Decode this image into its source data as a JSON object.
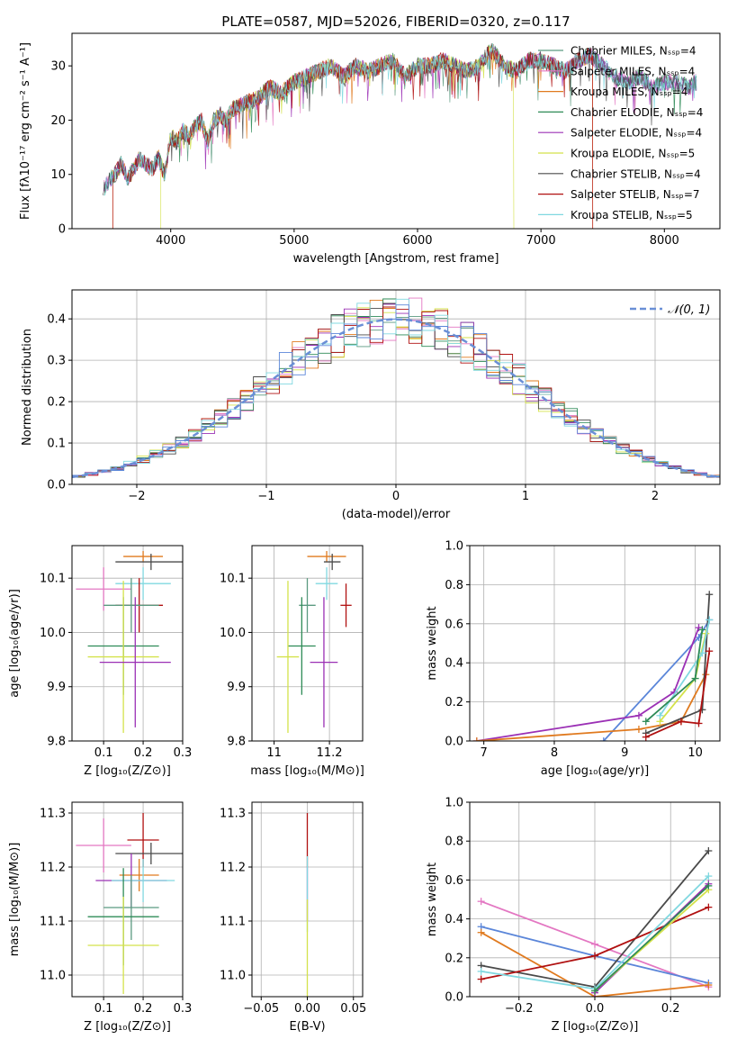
{
  "colors": {
    "Chabrier MILES": "#5b9a80",
    "Salpeter MILES": "#e377c2",
    "Kroupa MILES": "#e07a1f",
    "Chabrier ELODIE": "#2e8b57",
    "Salpeter ELODIE": "#9b30b5",
    "Kroupa ELODIE": "#d4e24b",
    "Chabrier STELIB": "#4a4a4a",
    "Salpeter STELIB": "#b01010",
    "Kroupa STELIB": "#80d8e0",
    "normal": "#6a8fd6",
    "extra_blue": "#5b86d9",
    "extra_teal": "#6fc9c6"
  },
  "chart_data": [
    {
      "id": "spectrum",
      "type": "line",
      "title": "PLATE=0587, MJD=52026, FIBERID=0320, z=0.117",
      "xlabel": "wavelength [Angstrom, rest frame]",
      "ylabel": "Flux [fλ10⁻¹⁷ erg cm⁻² s⁻¹ A⁻¹]",
      "xlim": [
        3200,
        8450
      ],
      "ylim": [
        0,
        36
      ],
      "xticks": [
        4000,
        5000,
        6000,
        7000,
        8000
      ],
      "yticks": [
        0,
        10,
        20,
        30
      ],
      "grid": false,
      "legend_position": "top-right",
      "legend": [
        {
          "label": "Chabrier MILES, Nₛₛₚ=4",
          "color_key": "Chabrier MILES"
        },
        {
          "label": "Salpeter MILES, Nₛₛₚ=4",
          "color_key": "Salpeter MILES"
        },
        {
          "label": "Kroupa MILES, Nₛₛₚ=4",
          "color_key": "Kroupa MILES"
        },
        {
          "label": "Chabrier ELODIE, Nₛₛₚ=4",
          "color_key": "Chabrier ELODIE"
        },
        {
          "label": "Salpeter ELODIE, Nₛₛₚ=4",
          "color_key": "Salpeter ELODIE"
        },
        {
          "label": "Kroupa ELODIE, Nₛₛₚ=5",
          "color_key": "Kroupa ELODIE"
        },
        {
          "label": "Chabrier STELIB, Nₛₛₚ=4",
          "color_key": "Chabrier STELIB"
        },
        {
          "label": "Salpeter STELIB, Nₛₛₚ=7",
          "color_key": "Salpeter STELIB"
        },
        {
          "label": "Kroupa STELIB, Nₛₛₚ=5",
          "color_key": "Kroupa STELIB"
        }
      ],
      "data_x": [
        3450,
        3500,
        3550,
        3600,
        3650,
        3700,
        3750,
        3800,
        3850,
        3900,
        3950,
        4000,
        4050,
        4100,
        4150,
        4200,
        4250,
        4300,
        4350,
        4400,
        4450,
        4500,
        4600,
        4700,
        4800,
        4900,
        5000,
        5100,
        5200,
        5300,
        5400,
        5500,
        5600,
        5700,
        5800,
        5900,
        6000,
        6100,
        6200,
        6300,
        6400,
        6500,
        6600,
        6700,
        6800,
        6900,
        7000,
        7100,
        7200,
        7300,
        7400,
        7500,
        7600,
        7700,
        7800,
        7900,
        8000,
        8100,
        8200,
        8250
      ],
      "data_y": [
        7,
        9,
        10,
        12,
        9,
        11,
        13,
        12,
        11,
        13,
        10,
        17,
        16,
        18,
        17,
        19,
        20,
        16,
        20,
        21,
        20,
        22,
        23,
        24,
        26,
        25,
        27,
        28,
        29,
        30,
        28,
        30,
        29,
        30,
        31,
        28,
        30,
        30,
        31,
        30,
        29,
        30,
        33,
        30,
        29,
        31,
        31,
        30,
        29,
        31,
        32,
        30,
        28,
        27,
        28,
        26,
        27,
        27,
        26,
        27
      ]
    },
    {
      "id": "residuals",
      "type": "histogram",
      "xlabel": "(data-model)/error",
      "ylabel": "Normed distribution",
      "xlim": [
        -2.5,
        2.5
      ],
      "ylim": [
        0,
        0.47
      ],
      "xticks": [
        -2,
        -1,
        0,
        1,
        2
      ],
      "yticks": [
        0.0,
        0.1,
        0.2,
        0.3,
        0.4
      ],
      "grid": true,
      "legend_position": "top-right",
      "legend": [
        {
          "label": "𝒩(0, 1)",
          "style": "dashed"
        }
      ],
      "bin_width": 0.1,
      "bins_start": -2.5
    },
    {
      "id": "age-vs-Z",
      "type": "scatter",
      "xlabel": "Z [log₁₀(Z/Z⊙)]",
      "ylabel": "age  [log₁₀(age/yr)]",
      "xlim": [
        0.02,
        0.3
      ],
      "ylim": [
        9.8,
        10.16
      ],
      "xticks": [
        0.1,
        0.2,
        0.3
      ],
      "yticks": [
        9.8,
        9.9,
        10.0,
        10.1
      ],
      "grid": true,
      "points": [
        {
          "model": "Salpeter MILES",
          "x": 0.1,
          "y": 10.08,
          "xerr": 0.07,
          "yerr": 0.04
        },
        {
          "model": "Kroupa MILES",
          "x": 0.2,
          "y": 10.14,
          "xerr": 0.05,
          "yerr": 0.01
        },
        {
          "model": "Chabrier STELIB",
          "x": 0.22,
          "y": 10.13,
          "xerr": 0.09,
          "yerr": 0.015
        },
        {
          "model": "Kroupa STELIB",
          "x": 0.2,
          "y": 10.09,
          "xerr": 0.07,
          "yerr": 0.03
        },
        {
          "model": "Salpeter STELIB",
          "x": 0.19,
          "y": 10.05,
          "xerr": 0.06,
          "yerr": 0.05
        },
        {
          "model": "Chabrier MILES",
          "x": 0.17,
          "y": 10.05,
          "xerr": 0.07,
          "yerr": 0.05
        },
        {
          "model": "Chabrier ELODIE",
          "x": 0.15,
          "y": 9.975,
          "xerr": 0.09,
          "yerr": 0.09
        },
        {
          "model": "Kroupa ELODIE",
          "x": 0.15,
          "y": 9.955,
          "xerr": 0.09,
          "yerr": 0.14
        },
        {
          "model": "Salpeter ELODIE",
          "x": 0.18,
          "y": 9.945,
          "xerr": 0.09,
          "yerr": 0.12
        }
      ]
    },
    {
      "id": "age-vs-mass",
      "type": "scatter",
      "xlabel": "mass [log₁₀(M/M⊙)]",
      "ylabel": "",
      "xlim": [
        10.92,
        11.32
      ],
      "ylim": [
        9.8,
        10.16
      ],
      "xticks": [
        11.0,
        11.2
      ],
      "yticks": [
        9.8,
        9.9,
        10.0,
        10.1
      ],
      "grid": true,
      "points": [
        {
          "model": "Kroupa MILES",
          "x": 11.19,
          "y": 10.14,
          "xerr": 0.07,
          "yerr": 0.01
        },
        {
          "model": "Chabrier STELIB",
          "x": 11.21,
          "y": 10.13,
          "xerr": 0.03,
          "yerr": 0.015
        },
        {
          "model": "Kroupa STELIB",
          "x": 11.19,
          "y": 10.09,
          "xerr": 0.04,
          "yerr": 0.03
        },
        {
          "model": "Salpeter STELIB",
          "x": 11.26,
          "y": 10.05,
          "xerr": 0.02,
          "yerr": 0.04
        },
        {
          "model": "Chabrier MILES",
          "x": 11.12,
          "y": 10.05,
          "xerr": 0.03,
          "yerr": 0.05
        },
        {
          "model": "Chabrier ELODIE",
          "x": 11.1,
          "y": 9.975,
          "xerr": 0.05,
          "yerr": 0.09
        },
        {
          "model": "Kroupa ELODIE",
          "x": 11.05,
          "y": 9.955,
          "xerr": 0.04,
          "yerr": 0.14
        },
        {
          "model": "Salpeter ELODIE",
          "x": 11.18,
          "y": 9.945,
          "xerr": 0.05,
          "yerr": 0.12
        }
      ]
    },
    {
      "id": "weight-vs-age",
      "type": "line",
      "xlabel": "age  [log₁₀(age/yr)]",
      "ylabel": "mass weight",
      "xlim": [
        6.8,
        10.35
      ],
      "ylim": [
        0,
        1.0
      ],
      "xticks": [
        7,
        8,
        9,
        10
      ],
      "yticks": [
        0.0,
        0.2,
        0.4,
        0.6,
        0.8,
        1.0
      ],
      "grid": true,
      "series": [
        {
          "model": "extra_blue",
          "x": [
            8.7,
            10.05,
            10.2
          ],
          "y": [
            0.0,
            0.53,
            0.62
          ]
        },
        {
          "model": "Salpeter ELODIE",
          "x": [
            6.9,
            9.2,
            9.7,
            10.05
          ],
          "y": [
            0.0,
            0.13,
            0.25,
            0.58
          ]
        },
        {
          "model": "Kroupa MILES",
          "x": [
            6.9,
            9.2,
            9.8,
            10.15
          ],
          "y": [
            0.0,
            0.06,
            0.1,
            0.34
          ]
        },
        {
          "model": "Chabrier STELIB",
          "x": [
            9.3,
            10.1,
            10.2
          ],
          "y": [
            0.04,
            0.16,
            0.75
          ]
        },
        {
          "model": "Salpeter STELIB",
          "x": [
            9.3,
            9.8,
            10.05,
            10.2
          ],
          "y": [
            0.02,
            0.1,
            0.09,
            0.46
          ]
        },
        {
          "model": "Kroupa ELODIE",
          "x": [
            9.5,
            10.0,
            10.15
          ],
          "y": [
            0.1,
            0.32,
            0.55
          ]
        },
        {
          "model": "Kroupa STELIB",
          "x": [
            9.5,
            10.1,
            10.2
          ],
          "y": [
            0.13,
            0.45,
            0.62
          ]
        },
        {
          "model": "Chabrier ELODIE",
          "x": [
            9.3,
            10.0,
            10.1
          ],
          "y": [
            0.1,
            0.32,
            0.57
          ]
        }
      ]
    },
    {
      "id": "mass-vs-Z",
      "type": "scatter",
      "xlabel": "Z [log₁₀(Z/Z⊙)]",
      "ylabel": "mass [log₁₀(M/M⊙)]",
      "xlim": [
        0.02,
        0.3
      ],
      "ylim": [
        10.96,
        11.32
      ],
      "xticks": [
        0.1,
        0.2,
        0.3
      ],
      "yticks": [
        11.0,
        11.1,
        11.2,
        11.3
      ],
      "grid": true,
      "points": [
        {
          "model": "Salpeter MILES",
          "x": 0.1,
          "y": 11.24,
          "xerr": 0.07,
          "yerr": 0.05
        },
        {
          "model": "Salpeter STELIB",
          "x": 0.2,
          "y": 11.25,
          "xerr": 0.04,
          "yerr": 0.05
        },
        {
          "model": "Chabrier STELIB",
          "x": 0.22,
          "y": 11.225,
          "xerr": 0.09,
          "yerr": 0.02
        },
        {
          "model": "Kroupa MILES",
          "x": 0.19,
          "y": 11.185,
          "xerr": 0.05,
          "yerr": 0.03
        },
        {
          "model": "Salpeter ELODIE",
          "x": 0.17,
          "y": 11.175,
          "xerr": 0.09,
          "yerr": 0.05
        },
        {
          "model": "Kroupa STELIB",
          "x": 0.2,
          "y": 11.175,
          "xerr": 0.08,
          "yerr": 0.04
        },
        {
          "model": "Chabrier MILES",
          "x": 0.17,
          "y": 11.125,
          "xerr": 0.07,
          "yerr": 0.06
        },
        {
          "model": "Chabrier ELODIE",
          "x": 0.15,
          "y": 11.108,
          "xerr": 0.09,
          "yerr": 0.09
        },
        {
          "model": "Kroupa ELODIE",
          "x": 0.15,
          "y": 11.055,
          "xerr": 0.09,
          "yerr": 0.09
        }
      ]
    },
    {
      "id": "mass-vs-ebv",
      "type": "scatter",
      "xlabel": "E(B-V)",
      "ylabel": "",
      "xlim": [
        -0.06,
        0.06
      ],
      "ylim": [
        10.96,
        11.32
      ],
      "xticks": [
        -0.05,
        0.0,
        0.05
      ],
      "xtick_labels": [
        "−0.05",
        "0.00",
        "0.05"
      ],
      "yticks": [
        11.0,
        11.1,
        11.2,
        11.3
      ],
      "grid": true,
      "points": [
        {
          "model": "Salpeter STELIB",
          "x": 0.0,
          "y": 11.25,
          "xerr": 0,
          "yerr": 0.05
        },
        {
          "model": "Salpeter ELODIE",
          "x": 0.0,
          "y": 11.15,
          "xerr": 0,
          "yerr": 0.05
        },
        {
          "model": "Kroupa STELIB",
          "x": 0.0,
          "y": 11.15,
          "xerr": 0,
          "yerr": 0.07
        },
        {
          "model": "Kroupa ELODIE",
          "x": 0.0,
          "y": 11.05,
          "xerr": 0,
          "yerr": 0.09
        }
      ]
    },
    {
      "id": "weight-vs-Z",
      "type": "line",
      "xlabel": "Z [log₁₀(Z/Z⊙)]",
      "ylabel": "mass weight",
      "xlim": [
        -0.33,
        0.33
      ],
      "ylim": [
        0,
        1.0
      ],
      "xticks": [
        -0.2,
        0.0,
        0.2
      ],
      "xtick_labels": [
        "−0.2",
        "0.0",
        "0.2"
      ],
      "yticks": [
        0.0,
        0.2,
        0.4,
        0.6,
        0.8,
        1.0
      ],
      "grid": true,
      "series": [
        {
          "model": "Salpeter MILES",
          "x": [
            -0.3,
            0.0,
            0.3
          ],
          "y": [
            0.49,
            0.27,
            0.05
          ]
        },
        {
          "model": "extra_blue",
          "x": [
            -0.3,
            0.0,
            0.3
          ],
          "y": [
            0.36,
            0.21,
            0.07
          ]
        },
        {
          "model": "Kroupa MILES",
          "x": [
            -0.3,
            0.0,
            0.3
          ],
          "y": [
            0.33,
            0.0,
            0.06
          ]
        },
        {
          "model": "Chabrier STELIB",
          "x": [
            -0.3,
            0.0,
            0.3
          ],
          "y": [
            0.16,
            0.05,
            0.75
          ]
        },
        {
          "model": "Salpeter STELIB",
          "x": [
            -0.3,
            0.0,
            0.3
          ],
          "y": [
            0.09,
            0.21,
            0.46
          ]
        },
        {
          "model": "Kroupa STELIB",
          "x": [
            -0.3,
            0.0,
            0.3
          ],
          "y": [
            0.13,
            0.04,
            0.62
          ]
        },
        {
          "model": "Salpeter ELODIE",
          "x": [
            0.0,
            0.3
          ],
          "y": [
            0.02,
            0.58
          ]
        },
        {
          "model": "Kroupa ELODIE",
          "x": [
            0.0,
            0.3
          ],
          "y": [
            0.03,
            0.55
          ]
        },
        {
          "model": "Chabrier ELODIE",
          "x": [
            0.0,
            0.3
          ],
          "y": [
            0.03,
            0.57
          ]
        }
      ]
    }
  ]
}
